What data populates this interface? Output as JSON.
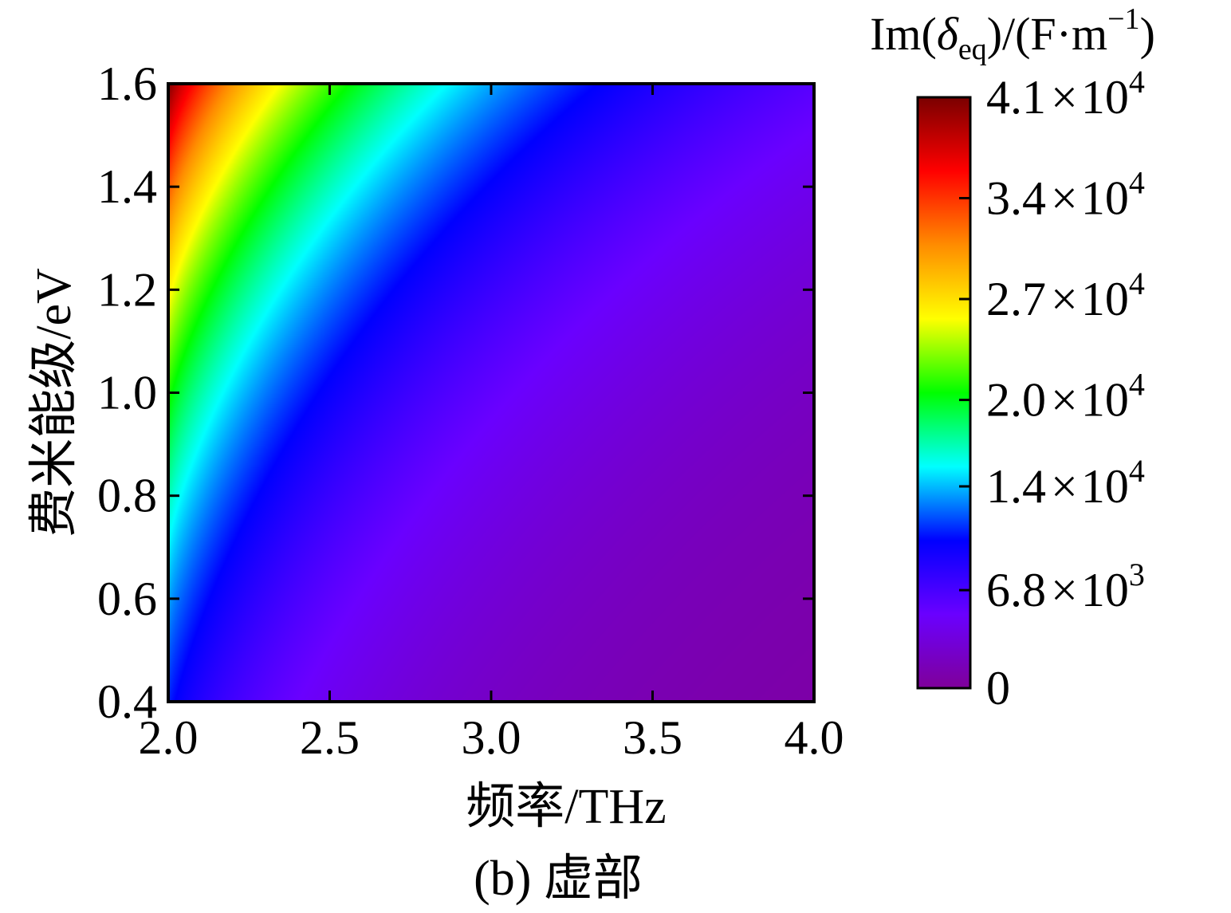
{
  "chart_data": {
    "type": "heatmap",
    "caption": "(b) 虚部",
    "xlabel": "频率/THz",
    "ylabel": "费米能级/eV",
    "xlim": [
      2.0,
      4.0
    ],
    "ylim": [
      0.4,
      1.6
    ],
    "x_ticks": [
      "2.0",
      "2.5",
      "3.0",
      "3.5",
      "4.0"
    ],
    "y_ticks": [
      "0.4",
      "0.6",
      "0.8",
      "1.0",
      "1.2",
      "1.4",
      "1.6"
    ],
    "z_values_at_corners": {
      "x2.0_y1.6": 41000,
      "x2.0_y0.4": 11000,
      "x4.0_y1.6": 6000,
      "x4.0_y0.4": 700
    },
    "colorbar": {
      "title_prefix": "Im(",
      "title_symbol": "δ",
      "title_subscript": "eq",
      "title_suffix": ")/(F·m",
      "title_superscript": "−1",
      "title_close": ")",
      "range": [
        0,
        41000
      ],
      "ticks": [
        {
          "value": 41000,
          "mantissa": "4.1",
          "times": "×",
          "base": "10",
          "exponent": "4"
        },
        {
          "value": 34000,
          "mantissa": "3.4",
          "times": "×",
          "base": "10",
          "exponent": "4"
        },
        {
          "value": 27000,
          "mantissa": "2.7",
          "times": "×",
          "base": "10",
          "exponent": "4"
        },
        {
          "value": 20000,
          "mantissa": "2.0",
          "times": "×",
          "base": "10",
          "exponent": "4"
        },
        {
          "value": 14000,
          "mantissa": "1.4",
          "times": "×",
          "base": "10",
          "exponent": "4"
        },
        {
          "value": 6800,
          "mantissa": "6.8",
          "times": "×",
          "base": "10",
          "exponent": "3"
        },
        {
          "value": 0,
          "mantissa": "0",
          "times": "",
          "base": "",
          "exponent": ""
        }
      ],
      "colormap": [
        "#7a0000",
        "#ff0000",
        "#ff8c00",
        "#ffff00",
        "#00ff00",
        "#00ffff",
        "#0000ff",
        "#6a00ff",
        "#7f0099"
      ]
    }
  }
}
